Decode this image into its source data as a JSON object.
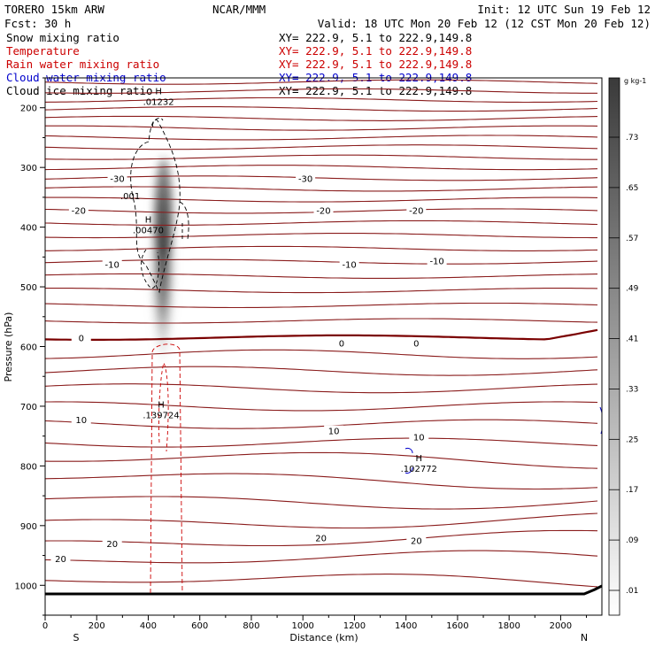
{
  "header": {
    "model": "TORERO  15km ARW",
    "center": "NCAR/MMM",
    "init": "Init: 12 UTC Sun 19 Feb 12",
    "fcst": "Fcst:   30 h",
    "valid": "Valid: 18 UTC Mon 20 Feb 12 (12 CST Mon 20 Feb 12)",
    "fields": [
      {
        "name": "Snow mixing ratio",
        "xy": "XY= 222.9,  5.1 to 222.9,149.8",
        "color": "#000000"
      },
      {
        "name": "Temperature",
        "xy": "XY= 222.9,  5.1 to 222.9,149.8",
        "color": "#cc0000"
      },
      {
        "name": "Rain water mixing ratio",
        "xy": "XY= 222.9,  5.1 to 222.9,149.8",
        "color": "#cc0000"
      },
      {
        "name": "Cloud water mixing ratio",
        "xy": "XY= 222.9,  5.1 to 222.9,149.8",
        "color": "#0000cc"
      },
      {
        "name": "Cloud ice mixing ratio",
        "xy": "XY= 222.9,  5.1 to 222.9,149.8",
        "color": "#000000"
      }
    ]
  },
  "chart_data": {
    "type": "cross-section",
    "xlabel": "Distance (km)",
    "ylabel": "Pressure (hPa)",
    "xlim": [
      0,
      2160
    ],
    "ylim": [
      1050,
      150
    ],
    "x_ticks": [
      0,
      200,
      400,
      600,
      800,
      1000,
      1200,
      1400,
      1600,
      1800,
      2000
    ],
    "y_ticks": [
      200,
      300,
      400,
      500,
      600,
      700,
      800,
      900,
      1000
    ],
    "x_ends": {
      "left": "S",
      "right": "N"
    },
    "colorbar": {
      "units": "g kg-1",
      "labels": [
        ".01",
        ".09",
        ".17",
        ".25",
        ".33",
        ".41",
        ".49",
        ".57",
        ".65",
        ".73"
      ]
    },
    "temperature_contours": {
      "interval_c": 5,
      "labels": [
        {
          "text": "-30",
          "x": 280,
          "p": 318
        },
        {
          "text": "-30",
          "x": 1010,
          "p": 318
        },
        {
          "text": "-20",
          "x": 130,
          "p": 372
        },
        {
          "text": "-20",
          "x": 1080,
          "p": 372
        },
        {
          "text": "-20",
          "x": 1440,
          "p": 372
        },
        {
          "text": "-10",
          "x": 260,
          "p": 462
        },
        {
          "text": "-10",
          "x": 1180,
          "p": 462
        },
        {
          "text": "-10",
          "x": 1520,
          "p": 456
        },
        {
          "text": "0",
          "x": 140,
          "p": 585
        },
        {
          "text": "0",
          "x": 1150,
          "p": 594
        },
        {
          "text": "0",
          "x": 1440,
          "p": 594
        },
        {
          "text": "10",
          "x": 140,
          "p": 722
        },
        {
          "text": "10",
          "x": 1120,
          "p": 741
        },
        {
          "text": "10",
          "x": 1450,
          "p": 751
        },
        {
          "text": "20",
          "x": 60,
          "p": 955
        },
        {
          "text": "20",
          "x": 260,
          "p": 930
        },
        {
          "text": "20",
          "x": 1070,
          "p": 920
        },
        {
          "text": "20",
          "x": 1440,
          "p": 925
        }
      ]
    },
    "extrema": [
      {
        "field": "Snow mixing ratio",
        "label": "H",
        "value": ".01232",
        "x": 440,
        "p": 195
      },
      {
        "field": "Snow mixing ratio",
        "label": "",
        "value": ".001",
        "x": 330,
        "p": 353
      },
      {
        "field": "Cloud ice mixing ratio",
        "label": "H",
        "value": ".00470",
        "x": 400,
        "p": 410
      },
      {
        "field": "Rain water mixing ratio",
        "label": "H",
        "value": ".139724",
        "x": 450,
        "p": 720
      },
      {
        "field": "Cloud water mixing ratio",
        "label": "H",
        "value": ".102772",
        "x": 1450,
        "p": 810
      }
    ]
  }
}
